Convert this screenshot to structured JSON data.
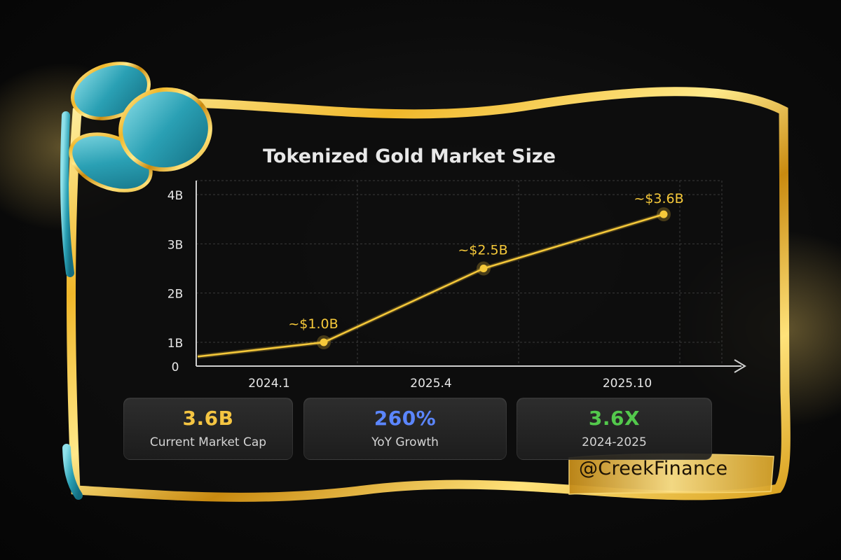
{
  "chart_data": {
    "type": "line",
    "title": "Tokenized Gold Market Size",
    "x_ticks": [
      "2024.1",
      "2025.4",
      "2025.10"
    ],
    "y_ticks": [
      "0",
      "1B",
      "2B",
      "3B",
      "4B"
    ],
    "ylim": [
      0,
      4.3
    ],
    "series": [
      {
        "x": [
          "2023.10",
          "2024.1",
          "2025.4",
          "2025.10"
        ],
        "y": [
          0.4,
          1.0,
          2.5,
          3.6
        ],
        "point_labels": [
          "",
          "~$1.0B",
          "~$2.5B",
          "~$3.6B"
        ]
      }
    ],
    "grid": true,
    "colors": {
      "line": "#f6c93a",
      "text": "#e8e8e8",
      "grid": "#3a3a3a"
    }
  },
  "stats": [
    {
      "value": "3.6B",
      "label": "Current Market Cap",
      "color": "#f5c542"
    },
    {
      "value": "260%",
      "label": "YoY Growth",
      "color": "#5b86ff"
    },
    {
      "value": "3.6X",
      "label": "2024-2025",
      "color": "#53c94c"
    }
  ],
  "branding": {
    "handle": "@CreekFinance"
  }
}
